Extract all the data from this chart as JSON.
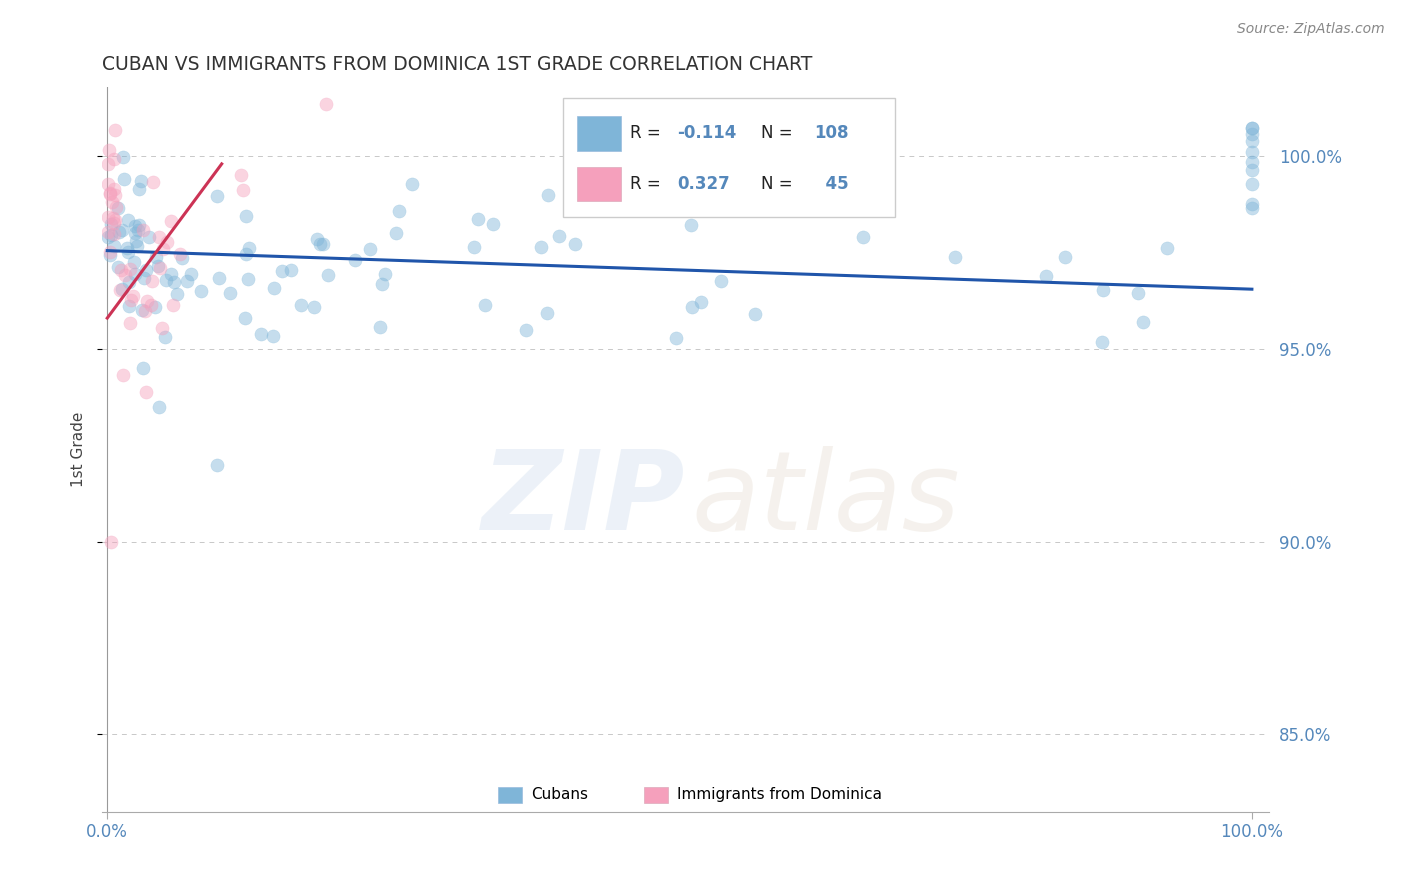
{
  "title": "CUBAN VS IMMIGRANTS FROM DOMINICA 1ST GRADE CORRELATION CHART",
  "source_text": "Source: ZipAtlas.com",
  "ylabel": "1st Grade",
  "ytick_positions": [
    85.0,
    90.0,
    95.0,
    100.0
  ],
  "ytick_labels": [
    "85.0%",
    "90.0%",
    "95.0%",
    "100.0%"
  ],
  "ylim_min": 83.0,
  "ylim_max": 101.8,
  "xlim_min": -0.5,
  "xlim_max": 101.5,
  "blue_line_y_start": 97.55,
  "blue_line_y_end": 96.55,
  "pink_line_x_start": 0.0,
  "pink_line_x_end": 10.0,
  "pink_line_y_start": 95.8,
  "pink_line_y_end": 99.8,
  "scatter_size": 90,
  "scatter_alpha": 0.45,
  "blue_color": "#7fb5d8",
  "pink_color": "#f5a0bc",
  "blue_edge_color": "#7fb5d8",
  "pink_edge_color": "#f5a0bc",
  "blue_line_color": "#2055aa",
  "pink_line_color": "#cc3355",
  "grid_color": "#c8c8c8",
  "title_color": "#333333",
  "axis_label_color": "#444444",
  "tick_label_color": "#5588bb",
  "watermark_zip_color": "#bdd0e8",
  "watermark_atlas_color": "#ddd0c0",
  "watermark_alpha": 0.28,
  "legend_R_color": "#5588bb",
  "legend_N_color": "#5588bb",
  "legend_text_color": "#222222"
}
